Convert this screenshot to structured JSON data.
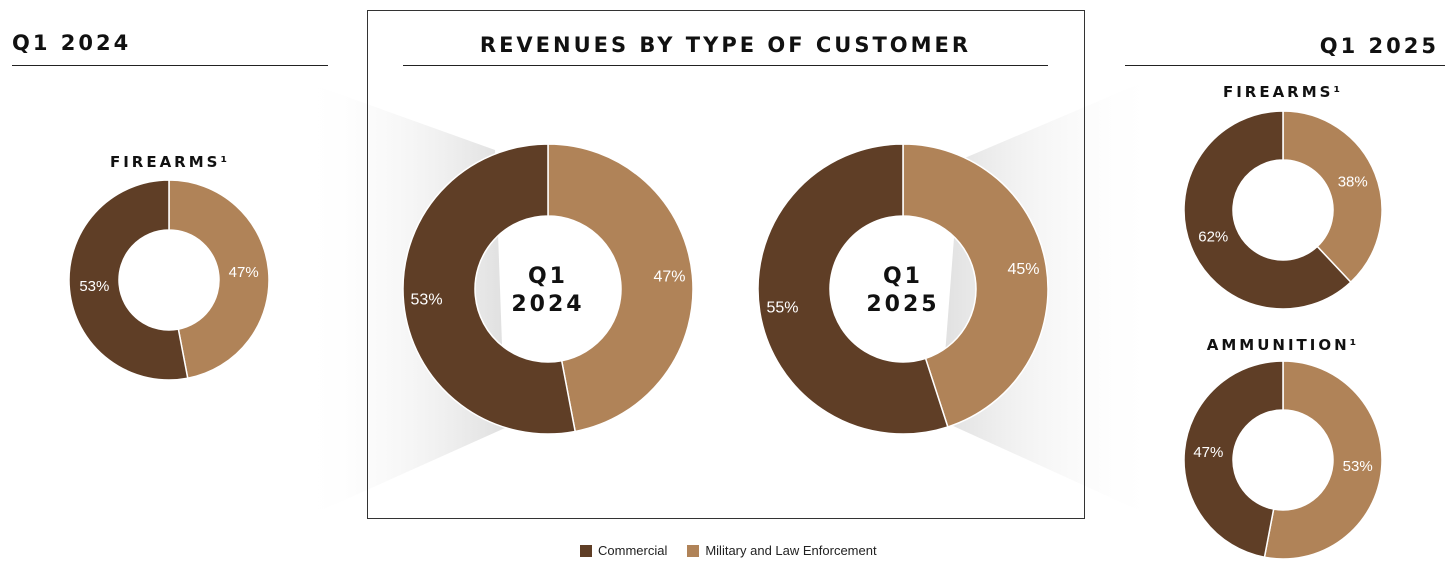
{
  "left_header": "Q1 2024",
  "right_header": "Q1 2025",
  "center_title": "REVENUES BY TYPE OF CUSTOMER",
  "colors": {
    "commercial": "#5f3e26",
    "military": "#b08358"
  },
  "legend": [
    {
      "label": "Commercial",
      "color": "#5f3e26"
    },
    {
      "label": "Military and Law Enforcement",
      "color": "#b08358"
    }
  ],
  "chart_data": [
    {
      "type": "pie",
      "title": "FIREARMS¹",
      "period": "Q1 2024",
      "slices": [
        {
          "name": "Commercial",
          "value": 53,
          "label": "53%"
        },
        {
          "name": "Military and Law Enforcement",
          "value": 47,
          "label": "47%"
        }
      ]
    },
    {
      "type": "pie",
      "title": "",
      "center_label": [
        "Q1",
        "2024"
      ],
      "slices": [
        {
          "name": "Commercial",
          "value": 53,
          "label": "53%"
        },
        {
          "name": "Military and Law Enforcement",
          "value": 47,
          "label": "47%"
        }
      ]
    },
    {
      "type": "pie",
      "title": "",
      "center_label": [
        "Q1",
        "2025"
      ],
      "slices": [
        {
          "name": "Commercial",
          "value": 55,
          "label": "55%"
        },
        {
          "name": "Military and Law Enforcement",
          "value": 45,
          "label": "45%"
        }
      ]
    },
    {
      "type": "pie",
      "title": "FIREARMS¹",
      "period": "Q1 2025",
      "slices": [
        {
          "name": "Commercial",
          "value": 62,
          "label": "62%"
        },
        {
          "name": "Military and Law Enforcement",
          "value": 38,
          "label": "38%"
        }
      ]
    },
    {
      "type": "pie",
      "title": "AMMUNITION¹",
      "period": "Q1 2025",
      "slices": [
        {
          "name": "Commercial",
          "value": 47,
          "label": "47%"
        },
        {
          "name": "Military and Law Enforcement",
          "value": 53,
          "label": "53%"
        }
      ]
    }
  ]
}
